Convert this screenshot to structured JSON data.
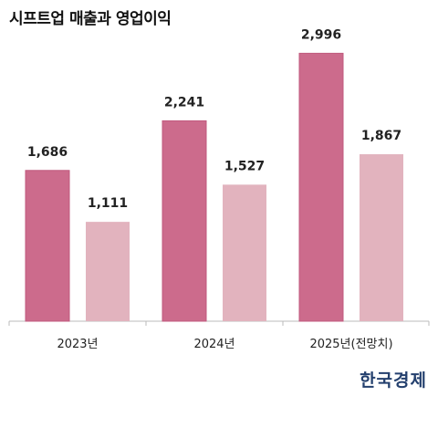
{
  "title": "시프트업 매출과 영업이익",
  "logo_text": "한국경제",
  "colors": {
    "series_1": "#cc6b8c",
    "series_1_border": "#c05a7e",
    "series_2": "#e2b3be",
    "axis": "#bbbbbb",
    "logo": "#24406e"
  },
  "chart_data": {
    "type": "bar",
    "title": "시프트업 매출과 영업이익",
    "xlabel": "",
    "ylabel": "",
    "categories": [
      "2023년",
      "2024년",
      "2025년(전망치)"
    ],
    "series": [
      {
        "values": [
          1686,
          2241,
          2996
        ],
        "labels": [
          "1,686",
          "2,241",
          "2,996"
        ],
        "color": "#cc6b8c"
      },
      {
        "values": [
          1111,
          1527,
          1867
        ],
        "labels": [
          "1,111",
          "1,527",
          "1,867"
        ],
        "color": "#e2b3be"
      }
    ],
    "ylim": [
      0,
      3000
    ],
    "grid": false,
    "legend": "none"
  }
}
